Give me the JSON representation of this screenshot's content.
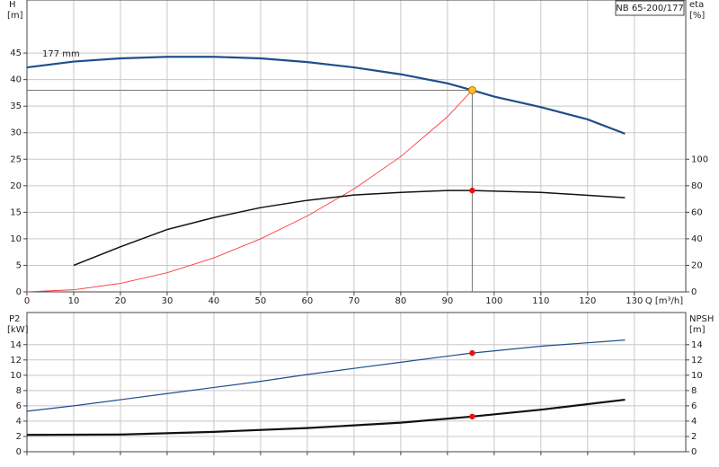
{
  "chart_data": [
    {
      "type": "line",
      "title": "NB 65-200/177",
      "annotation": "177 mm",
      "ylabel": "H",
      "yunit": "[m]",
      "y2label": "eta",
      "y2unit": "[%]",
      "xlabel": "Q [m³/h]",
      "xlim": [
        0,
        141
      ],
      "xticks": [
        0,
        10,
        20,
        30,
        40,
        50,
        60,
        70,
        80,
        90,
        100,
        110,
        120,
        130
      ],
      "ylim": [
        0,
        55
      ],
      "yticks": [
        0,
        5,
        10,
        15,
        20,
        25,
        30,
        35,
        40,
        45
      ],
      "y2lim": [
        0,
        220
      ],
      "y2ticks": [
        0,
        20,
        40,
        60,
        80,
        100
      ],
      "grid": true,
      "series": [
        {
          "kind": "line",
          "color": "#1f4e8c",
          "linewidth": 2.2,
          "axis": "y",
          "x": [
            0,
            10,
            20,
            30,
            40,
            50,
            60,
            70,
            80,
            90,
            95.3,
            100,
            110,
            120,
            128
          ],
          "values": [
            42.3,
            43.4,
            44,
            44.3,
            44.3,
            44,
            43.3,
            42.3,
            41,
            39.3,
            38,
            36.8,
            34.8,
            32.5,
            29.8
          ]
        },
        {
          "kind": "line",
          "color": "#ff3b3b",
          "linewidth": 0.9,
          "axis": "y",
          "x": [
            0,
            10,
            20,
            30,
            40,
            50,
            60,
            70,
            80,
            90,
            95.3
          ],
          "values": [
            0,
            0.4,
            1.6,
            3.6,
            6.4,
            10,
            14.3,
            19.4,
            25.5,
            33,
            38
          ]
        },
        {
          "kind": "line",
          "color": "#111111",
          "linewidth": 1.5,
          "axis": "y2",
          "x": [
            10,
            20,
            30,
            40,
            50,
            60,
            70,
            80,
            90,
            95.3,
            110,
            128
          ],
          "values": [
            20,
            34,
            47,
            56,
            63.5,
            69,
            73,
            75,
            76.4,
            76.4,
            75,
            71
          ]
        },
        {
          "kind": "point",
          "color": "#ffc21a",
          "guides": true,
          "axis": "y",
          "x": [
            95.3
          ],
          "values": [
            38
          ]
        },
        {
          "kind": "point",
          "color": "#ee1111",
          "axis": "y2",
          "x": [
            95.3
          ],
          "values": [
            76.4
          ]
        }
      ]
    },
    {
      "type": "line",
      "ylabel": "P2",
      "yunit": "[kW]",
      "y2label": "NPSH",
      "y2unit": "[m]",
      "xlim": [
        0,
        141
      ],
      "xticks": [
        0,
        10,
        20,
        30,
        40,
        50,
        60,
        70,
        80,
        90,
        100,
        110,
        120,
        130
      ],
      "ylim": [
        0,
        18.2
      ],
      "yticks": [
        0,
        2,
        4,
        6,
        8,
        10,
        12,
        14
      ],
      "y2lim": [
        0,
        18.2
      ],
      "y2ticks": [
        0,
        2,
        4,
        6,
        8,
        10,
        12,
        14
      ],
      "grid": true,
      "series": [
        {
          "kind": "line",
          "color": "#1f4e8c",
          "linewidth": 1.2,
          "axis": "y",
          "x": [
            0,
            10,
            20,
            30,
            40,
            50,
            60,
            70,
            80,
            90,
            95.3,
            110,
            128
          ],
          "values": [
            5.3,
            6.0,
            6.8,
            7.6,
            8.4,
            9.2,
            10.1,
            10.9,
            11.7,
            12.5,
            12.9,
            13.8,
            14.6
          ]
        },
        {
          "kind": "line",
          "color": "#111111",
          "linewidth": 2.2,
          "axis": "y2",
          "x": [
            0,
            20,
            40,
            60,
            80,
            95.3,
            110,
            128
          ],
          "values": [
            2.2,
            2.25,
            2.6,
            3.1,
            3.8,
            4.6,
            5.5,
            6.8
          ]
        },
        {
          "kind": "point",
          "color": "#ee1111",
          "axis": "y",
          "x": [
            95.3
          ],
          "values": [
            12.9
          ]
        },
        {
          "kind": "point",
          "color": "#ee1111",
          "axis": "y2",
          "x": [
            95.3
          ],
          "values": [
            4.6
          ]
        }
      ]
    }
  ]
}
